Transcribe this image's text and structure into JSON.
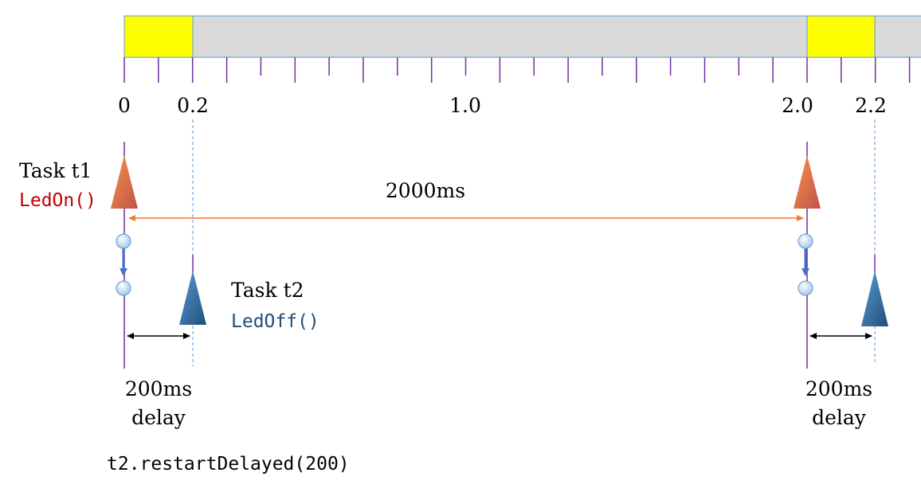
{
  "timeline": {
    "tick_labels": [
      {
        "value": "0"
      },
      {
        "value": "0.2"
      },
      {
        "value": "1.0"
      },
      {
        "value": "2.0"
      },
      {
        "value": "2.2"
      }
    ],
    "on_color": "#ffff00",
    "off_color": "#d9d9d9",
    "tick_color": "#7030a0"
  },
  "task1": {
    "title": "Task t1",
    "func": "LedOn()",
    "color": "#c00000",
    "marker_color": "#e46c0a"
  },
  "task2": {
    "title": "Task t2",
    "func": "LedOff()",
    "color": "#1f4e79",
    "marker_color": "#2e75b6"
  },
  "period": {
    "label": "2000ms"
  },
  "delay1": {
    "line1": "200ms",
    "line2": "delay"
  },
  "delay2": {
    "line1": "200ms",
    "line2": "delay"
  },
  "call": {
    "code": "t2.restartDelayed(200)"
  }
}
